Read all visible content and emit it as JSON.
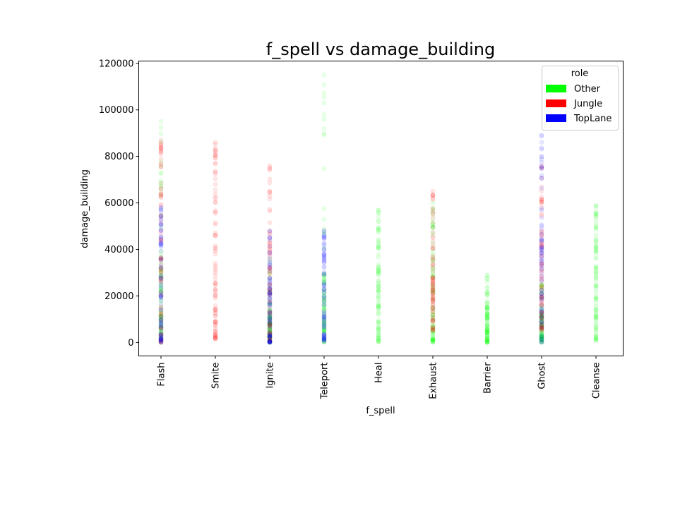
{
  "chart_data": {
    "type": "scatter",
    "title": "f_spell vs damage_building",
    "xlabel": "f_spell",
    "ylabel": "damage_building",
    "categories": [
      "Flash",
      "Smite",
      "Ignite",
      "Teleport",
      "Heal",
      "Exhaust",
      "Barrier",
      "Ghost",
      "Cleanse"
    ],
    "ylim": [
      -5800,
      121000
    ],
    "yticks": [
      0,
      20000,
      40000,
      60000,
      80000,
      100000,
      120000
    ],
    "ytick_labels": [
      "0",
      "20000",
      "40000",
      "60000",
      "80000",
      "100000",
      "120000"
    ],
    "grid": false,
    "legend": {
      "title": "role",
      "placement": "top-right",
      "entries": [
        {
          "label": "Other",
          "color": "#00ff00"
        },
        {
          "label": "Jungle",
          "color": "#ff0000"
        },
        {
          "label": "TopLane",
          "color": "#0000ff"
        }
      ]
    },
    "series": [
      {
        "name": "Other",
        "color": "#00ff00",
        "ranges": [
          {
            "category": "Flash",
            "min": 0,
            "max": 95000,
            "dense_max": 38000
          },
          {
            "category": "Ignite",
            "min": 0,
            "max": 36000,
            "dense_max": 14000
          },
          {
            "category": "Teleport",
            "min": 0,
            "max": 115000,
            "dense_max": 30000
          },
          {
            "category": "Heal",
            "min": 0,
            "max": 57000,
            "dense_max": 42000
          },
          {
            "category": "Exhaust",
            "min": 0,
            "max": 60000,
            "dense_max": 40000
          },
          {
            "category": "Barrier",
            "min": 0,
            "max": 29000,
            "dense_max": 16000
          },
          {
            "category": "Ghost",
            "min": 0,
            "max": 25000,
            "dense_max": 14000
          },
          {
            "category": "Cleanse",
            "min": 0,
            "max": 59000,
            "dense_max": 46000
          }
        ]
      },
      {
        "name": "Jungle",
        "color": "#ff0000",
        "ranges": [
          {
            "category": "Flash",
            "min": 0,
            "max": 87000,
            "dense_max": 75000
          },
          {
            "category": "Smite",
            "min": 1500,
            "max": 86000,
            "dense_max": 70000
          },
          {
            "category": "Ignite",
            "min": 0,
            "max": 76000,
            "dense_max": 45000
          },
          {
            "category": "Exhaust",
            "min": 5000,
            "max": 65000,
            "dense_max": 45000
          },
          {
            "category": "Ghost",
            "min": 5000,
            "max": 76000,
            "dense_max": 50000
          }
        ]
      },
      {
        "name": "TopLane",
        "color": "#0000ff",
        "ranges": [
          {
            "category": "Flash",
            "min": 0,
            "max": 58000,
            "dense_max": 48000
          },
          {
            "category": "Ignite",
            "min": 0,
            "max": 48000,
            "dense_max": 30000
          },
          {
            "category": "Teleport",
            "min": 0,
            "max": 48000,
            "dense_max": 38000
          },
          {
            "category": "Ghost",
            "min": 0,
            "max": 89000,
            "dense_max": 58000
          }
        ]
      }
    ]
  }
}
